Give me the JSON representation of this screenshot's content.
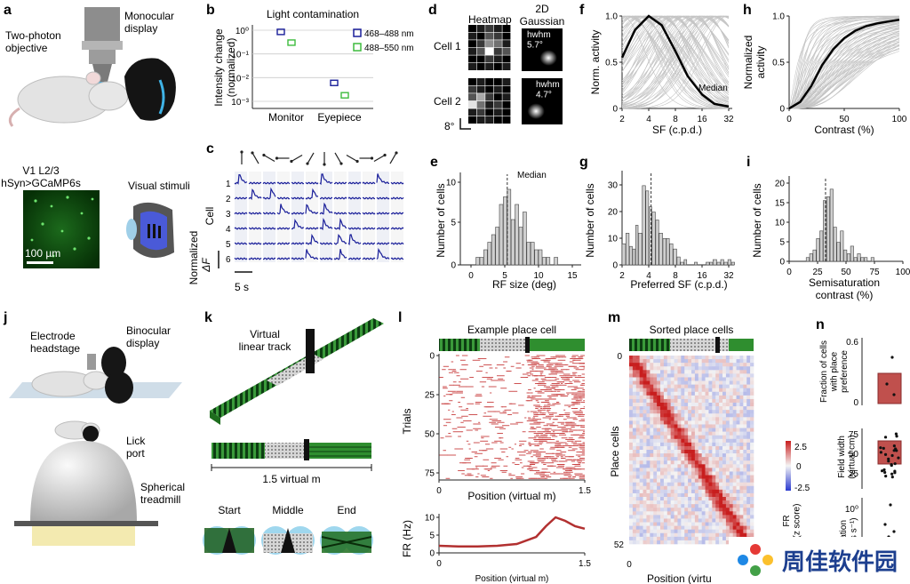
{
  "panels": {
    "a": {
      "letter": "a",
      "objective": "Two-photon\nobjective",
      "display": "Monocular\ndisplay",
      "fov_title": "V1 L2/3\nhSyn>GCaMP6s",
      "scale": "100 µm",
      "stimuli": "Visual stimuli"
    },
    "b": {
      "letter": "b",
      "title": "Light contamination",
      "ylabel": "Intensity change\n(normalized)",
      "yticks": [
        "10⁰",
        "10⁻¹",
        "10⁻²",
        "10⁻³"
      ],
      "xticks": [
        "Monitor",
        "Eyepiece"
      ],
      "legend": [
        "468–488 nm",
        "488–550 nm"
      ]
    },
    "c": {
      "letter": "c",
      "cells": [
        "1",
        "2",
        "3",
        "4",
        "5",
        "6"
      ],
      "cell_label": "Cell",
      "ylabel": "Normalized",
      "dF": "ΔF",
      "scale": "5 s"
    },
    "d": {
      "letter": "d",
      "heatmap": "Heatmap",
      "gauss": "2D\nGaussian",
      "cell1": "Cell 1",
      "cell2": "Cell 2",
      "hw1": "hwhm\n5.7°",
      "hw2": "hwhm\n4.7°",
      "scale": "8°"
    },
    "e": {
      "letter": "e",
      "median": "Median",
      "ylabel": "Number of cells",
      "xlabel": "RF size (deg)",
      "xticks": [
        "0",
        "5",
        "10",
        "15"
      ],
      "yticks": [
        "0",
        "5",
        "10"
      ]
    },
    "f": {
      "letter": "f",
      "ylabel": "Norm. activity",
      "xlabel": "SF (c.p.d.)",
      "xticks": [
        "2",
        "4",
        "8",
        "16",
        "32"
      ],
      "yticks": [
        "0",
        "0.5",
        "1.0"
      ],
      "median": "Median"
    },
    "g": {
      "letter": "g",
      "ylabel": "Number of cells",
      "xlabel": "Preferred SF (c.p.d.)",
      "xticks": [
        "2",
        "4",
        "8",
        "16",
        "32"
      ],
      "yticks": [
        "0",
        "10",
        "20",
        "30"
      ]
    },
    "h": {
      "letter": "h",
      "ylabel": "Normalized\nactivity",
      "xlabel": "Contrast (%)",
      "xticks": [
        "0",
        "50",
        "100"
      ],
      "yticks": [
        "0",
        "0.5",
        "1.0"
      ]
    },
    "i": {
      "letter": "i",
      "ylabel": "Number of cells",
      "xlabel": "Semisaturation\ncontrast (%)",
      "xticks": [
        "0",
        "25",
        "50",
        "75",
        "100"
      ],
      "yticks": [
        "0",
        "5",
        "10",
        "15",
        "20"
      ]
    },
    "j": {
      "letter": "j",
      "headstage": "Electrode\nheadstage",
      "binocular": "Binocular\ndisplay",
      "lick": "Lick\nport",
      "treadmill": "Spherical\ntreadmill"
    },
    "k": {
      "letter": "k",
      "track": "Virtual\nlinear track",
      "length": "1.5 virtual m",
      "views": [
        "Start",
        "Middle",
        "End"
      ]
    },
    "l": {
      "letter": "l",
      "title": "Example place cell",
      "ylabel": "Trials",
      "xlabel": "Position (virtual m)",
      "yticks": [
        "0",
        "25",
        "50",
        "75"
      ],
      "xticks": [
        "0",
        "1.5"
      ],
      "fr_ylabel": "FR (Hz)",
      "fr_yticks": [
        "0",
        "5",
        "10"
      ],
      "fr_xlabel": "Position (virtual m)",
      "fr_xticks": [
        "0",
        "1.5"
      ]
    },
    "m": {
      "letter": "m",
      "title": "Sorted place cells",
      "ylabel": "Place cells",
      "yticks": [
        "0",
        "52"
      ],
      "xlabel": "Position (virtu",
      "xticks": [
        "0"
      ],
      "cbar_ticks": [
        "2.5",
        "0",
        "-2.5"
      ],
      "cbar_label": "FR\n(z score)"
    },
    "n": {
      "letter": "n",
      "y1": "Fraction of cells\nwith place\npreference",
      "y1ticks": [
        "0",
        "0.6"
      ],
      "y2": "Field width\n(virtual cm)",
      "y2ticks": [
        "25",
        "50",
        "75"
      ],
      "y3": "mation\nbits s⁻¹)",
      "y3ticks": [
        "10⁰"
      ]
    }
  },
  "watermark": "周佳软件园",
  "colors": {
    "blue": "#1a1f9a",
    "green": "#3dbb3d",
    "red": "#b23030",
    "gray": "#9a9a9a",
    "accent": "#1d3f8f"
  },
  "chart_data": [
    {
      "type": "scatter",
      "panel": "b",
      "title": "Light contamination",
      "ylabel": "Intensity change (normalized)",
      "yscale": "log",
      "ylim": [
        0.0005,
        1.5
      ],
      "categories": [
        "Monitor",
        "Eyepiece"
      ],
      "series": [
        {
          "name": "468–488 nm",
          "values": [
            0.85,
            0.006
          ]
        },
        {
          "name": "488–550 nm",
          "values": [
            0.3,
            0.0018
          ]
        }
      ]
    },
    {
      "type": "bar",
      "panel": "e",
      "xlabel": "RF size (deg)",
      "ylabel": "Number of cells",
      "xlim": [
        0,
        15
      ],
      "ylim": [
        0,
        12
      ],
      "bin_starts": [
        2,
        2.5,
        3,
        3.5,
        4,
        4.5,
        5,
        5.5,
        6,
        6.5,
        7,
        7.5,
        8,
        8.5,
        9,
        9.5,
        10,
        10.5,
        11,
        11.5,
        12
      ],
      "values": [
        1,
        1,
        2,
        3,
        4,
        5,
        8,
        9,
        10,
        6,
        8,
        5,
        7,
        3,
        3,
        2,
        2,
        1,
        1,
        0,
        1
      ],
      "median": 6
    },
    {
      "type": "line",
      "panel": "f",
      "xlabel": "SF (c.p.d.)",
      "ylabel": "Norm. activity",
      "xscale": "log",
      "xlim": [
        2,
        32
      ],
      "ylim": [
        0,
        1
      ],
      "series": [
        {
          "name": "Median",
          "x": [
            2,
            2.8,
            4,
            5.6,
            8,
            11,
            16,
            22,
            32
          ],
          "values": [
            0.55,
            0.85,
            1.0,
            0.9,
            0.62,
            0.35,
            0.15,
            0.05,
            0.02
          ]
        }
      ]
    },
    {
      "type": "bar",
      "panel": "g",
      "xlabel": "Preferred SF (c.p.d.)",
      "ylabel": "Number of cells",
      "xscale": "log",
      "xlim": [
        2,
        32
      ],
      "ylim": [
        0,
        35
      ],
      "bin_starts": [
        2.0,
        2.2,
        2.4,
        2.6,
        2.8,
        3.0,
        3.3,
        3.6,
        3.9,
        4.2,
        4.6,
        5.0,
        5.5,
        6.0,
        6.5,
        7.1,
        7.8,
        8.5,
        9.3,
        10,
        11,
        12,
        13,
        14.5,
        16,
        17.5,
        19,
        21,
        23,
        25,
        27.5,
        30
      ],
      "values": [
        8,
        12,
        7,
        6,
        15,
        12,
        30,
        28,
        22,
        20,
        17,
        12,
        10,
        10,
        8,
        6,
        3,
        1,
        2,
        0,
        0,
        1,
        0,
        0,
        1,
        1,
        2,
        1,
        2,
        1,
        2,
        1
      ],
      "median": 4.1
    },
    {
      "type": "line",
      "panel": "h",
      "xlabel": "Contrast (%)",
      "ylabel": "Normalized activity",
      "xlim": [
        0,
        100
      ],
      "ylim": [
        0,
        1
      ],
      "series": [
        {
          "name": "",
          "x": [
            0,
            10,
            20,
            30,
            40,
            50,
            60,
            70,
            80,
            90,
            100
          ],
          "values": [
            0,
            0.07,
            0.24,
            0.47,
            0.64,
            0.76,
            0.84,
            0.89,
            0.92,
            0.94,
            0.96
          ]
        }
      ]
    },
    {
      "type": "bar",
      "panel": "i",
      "xlabel": "Semisaturation contrast (%)",
      "ylabel": "Number of cells",
      "xlim": [
        0,
        100
      ],
      "ylim": [
        0,
        22
      ],
      "bin_starts": [
        15,
        18,
        21,
        24,
        27,
        30,
        33,
        36,
        39,
        42,
        45,
        48,
        51,
        54,
        57,
        60,
        63,
        66,
        69,
        72,
        75
      ],
      "values": [
        1,
        2,
        3,
        6,
        8,
        16,
        17,
        19,
        9,
        5,
        8,
        3,
        2,
        4,
        1,
        2,
        1,
        1,
        0,
        1,
        0
      ],
      "median": 32
    },
    {
      "type": "line",
      "panel": "l-fr",
      "xlabel": "Position (virtual m)",
      "ylabel": "FR (Hz)",
      "xlim": [
        0,
        1.5
      ],
      "ylim": [
        0,
        11
      ],
      "series": [
        {
          "name": "",
          "x": [
            0,
            0.2,
            0.4,
            0.6,
            0.8,
            1.0,
            1.1,
            1.2,
            1.3,
            1.4,
            1.5
          ],
          "values": [
            2,
            1.8,
            1.8,
            2,
            2.5,
            4.5,
            7.5,
            10,
            9,
            7.5,
            6.8
          ]
        }
      ]
    }
  ]
}
